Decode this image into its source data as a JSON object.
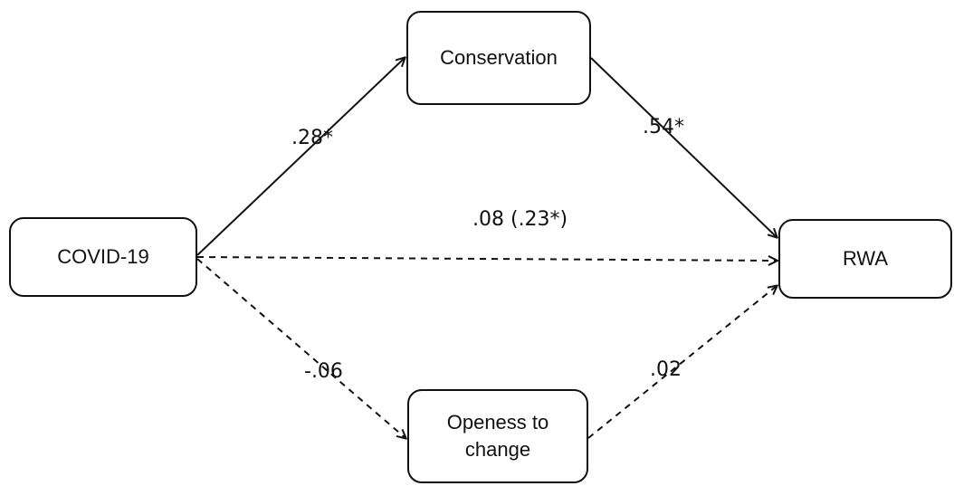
{
  "nodes": {
    "covid": "COVID-19",
    "conservation": "Conservation",
    "rwa": "RWA",
    "openness": "Openess to\nchange"
  },
  "paths": {
    "covid_to_conservation": {
      "label": ".28*",
      "style": "solid"
    },
    "conservation_to_rwa": {
      "label": ".54*",
      "style": "solid"
    },
    "covid_to_rwa": {
      "label": ".08 (.23*)",
      "style": "dashed"
    },
    "covid_to_openness": {
      "label": "-.06",
      "style": "dashed"
    },
    "openness_to_rwa": {
      "label": ".02",
      "style": "dashed"
    }
  },
  "colors": {
    "stroke": "#111111",
    "background": "#ffffff"
  }
}
